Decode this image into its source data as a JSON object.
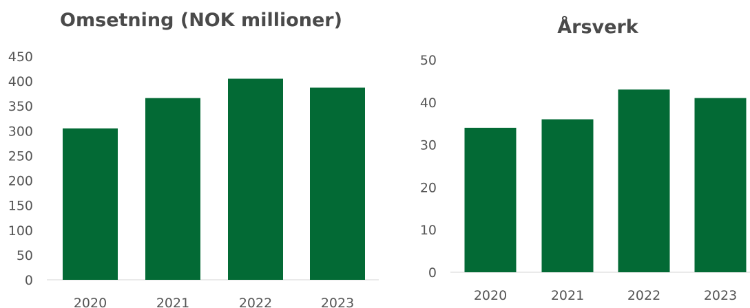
{
  "colors": {
    "bar": "#036a35",
    "title": "#4a4a4a",
    "tick": "#555555",
    "axis": "#d6d6d6"
  },
  "chart_data": [
    {
      "type": "bar",
      "title": "Omsetning (NOK millioner)",
      "categories": [
        "2020",
        "2021",
        "2022",
        "2023"
      ],
      "values": [
        305,
        366,
        405,
        387
      ],
      "ylim": [
        0,
        450
      ],
      "yticks": [
        0,
        50,
        100,
        150,
        200,
        250,
        300,
        350,
        400,
        450
      ],
      "grid": false,
      "legend": "none"
    },
    {
      "type": "bar",
      "title": "Årsverk",
      "categories": [
        "2020",
        "2021",
        "2022",
        "2023"
      ],
      "values": [
        34,
        36,
        43,
        41
      ],
      "ylim": [
        0,
        50
      ],
      "yticks": [
        0,
        10,
        20,
        30,
        40,
        50
      ],
      "grid": false,
      "legend": "none"
    }
  ]
}
